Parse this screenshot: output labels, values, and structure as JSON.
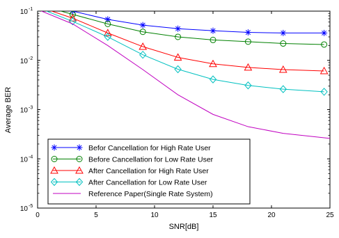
{
  "chart_data": {
    "type": "line",
    "title": "",
    "xlabel": "SNR[dB]",
    "ylabel": "Average BER",
    "xlim": [
      0,
      25
    ],
    "ylim": [
      1e-05,
      0.1
    ],
    "yscale": "log",
    "grid": false,
    "legend_position": "bottom-left",
    "x_ticks": [
      "0",
      "5",
      "10",
      "15",
      "20",
      "25"
    ],
    "y_ticks": [
      {
        "base": "10",
        "exp": "-5"
      },
      {
        "base": "10",
        "exp": "-4"
      },
      {
        "base": "10",
        "exp": "-3"
      },
      {
        "base": "10",
        "exp": "-2"
      },
      {
        "base": "10",
        "exp": "-1"
      }
    ],
    "series": [
      {
        "name": "Befor Cancellation for High Rate User",
        "color": "#0000ff",
        "marker": "star",
        "x": [
          0,
          3,
          6,
          9,
          12,
          15,
          18,
          21,
          24.5
        ],
        "y": [
          0.14,
          0.1,
          0.068,
          0.052,
          0.044,
          0.04,
          0.037,
          0.036,
          0.036
        ]
      },
      {
        "name": "Before Cancellation for Low Rate User",
        "color": "#008000",
        "marker": "circle",
        "x": [
          0,
          3,
          6,
          9,
          12,
          15,
          18,
          21,
          24.5
        ],
        "y": [
          0.135,
          0.086,
          0.055,
          0.038,
          0.03,
          0.026,
          0.024,
          0.022,
          0.021
        ]
      },
      {
        "name": "After Cancellation for High Rate User",
        "color": "#ff0000",
        "marker": "triangle",
        "x": [
          0,
          3,
          6,
          9,
          12,
          15,
          18,
          21,
          24.5
        ],
        "y": [
          0.125,
          0.072,
          0.036,
          0.019,
          0.0115,
          0.0085,
          0.0072,
          0.0065,
          0.0061
        ]
      },
      {
        "name": "After Cancellation for Low Rate User",
        "color": "#00c0c0",
        "marker": "diamond",
        "x": [
          0,
          3,
          6,
          9,
          12,
          15,
          18,
          21,
          24.5
        ],
        "y": [
          0.118,
          0.062,
          0.03,
          0.013,
          0.0066,
          0.0041,
          0.0031,
          0.0026,
          0.0023
        ]
      },
      {
        "name": "Reference Paper(Single Rate System)",
        "color": "#c000c0",
        "marker": "none",
        "x": [
          0,
          3,
          6,
          9,
          12,
          15,
          18,
          21,
          25
        ],
        "y": [
          0.108,
          0.055,
          0.02,
          0.0065,
          0.002,
          0.0008,
          0.00045,
          0.00033,
          0.00026
        ]
      }
    ]
  }
}
